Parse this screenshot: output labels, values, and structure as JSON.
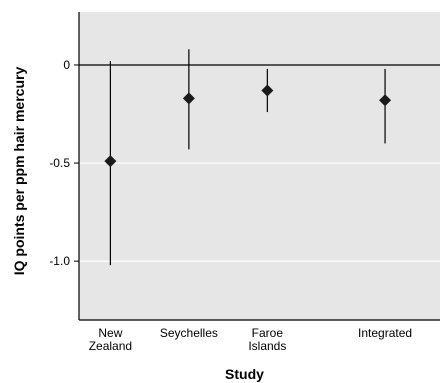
{
  "chart_data": {
    "type": "scatter",
    "xlabel": "Study",
    "ylabel": "IQ points per ppm hair mercury",
    "ylim": [
      -1.3,
      0.27
    ],
    "grid": true,
    "yticks": [
      {
        "value": 0,
        "label": "0"
      },
      {
        "value": -0.5,
        "label": "-0.5"
      },
      {
        "value": -1.0,
        "label": "-1.0"
      }
    ],
    "categories": [
      {
        "lines": [
          "New",
          "Zealand"
        ],
        "x": 1
      },
      {
        "lines": [
          "Seychelles"
        ],
        "x": 2
      },
      {
        "lines": [
          "Faroe",
          "Islands"
        ],
        "x": 3
      },
      {
        "lines": [
          "Integrated"
        ],
        "x": 4.5
      }
    ],
    "xlim": [
      0.6,
      5.2
    ],
    "points": [
      {
        "value": -0.49,
        "low": -1.02,
        "high": 0.02
      },
      {
        "value": -0.17,
        "low": -0.43,
        "high": 0.08
      },
      {
        "value": -0.13,
        "low": -0.24,
        "high": -0.02
      },
      {
        "value": -0.18,
        "low": -0.4,
        "high": -0.02
      }
    ],
    "colors": {
      "panel": "#e6e6e6",
      "grid": "#ffffff",
      "axis": "#000000",
      "marker": "#1a1a1a"
    }
  }
}
